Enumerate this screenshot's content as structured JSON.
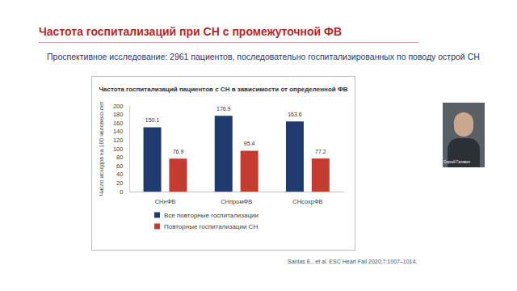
{
  "page": {
    "title": "Частота госпитализаций при СН с промежуточной ФВ",
    "subtitle": "Проспективное исследование: 2961 пациентов, последовательно госпитализированных по поводу острой СН",
    "source": "Santas E., et al. ESC Heart Fail 2020;7:1007–1014.",
    "presenter": "Сергей Галявич"
  },
  "chart_data": {
    "type": "bar",
    "title": "Частота госпитализаций пациентов с СН в зависимости от определенной ФВ",
    "y_label": "Число исходов на 100 человеко-лет",
    "categories": [
      "СНнФВ",
      "СНпромФВ",
      "СНсохрФВ"
    ],
    "series": [
      {
        "name": "Все повторные госпитализации",
        "color": "#1f3a6e",
        "values": [
          150.1,
          176.9,
          163.6
        ]
      },
      {
        "name": "Повторные госпитализации СН",
        "color": "#c43b2f",
        "values": [
          76.9,
          95.4,
          77.2
        ]
      }
    ],
    "ylim": [
      0,
      200
    ],
    "yticks": [
      0,
      20,
      40,
      60,
      80,
      100,
      120,
      140,
      160,
      180,
      200
    ],
    "grid": false,
    "legend": "bottom",
    "data_labels": true
  }
}
